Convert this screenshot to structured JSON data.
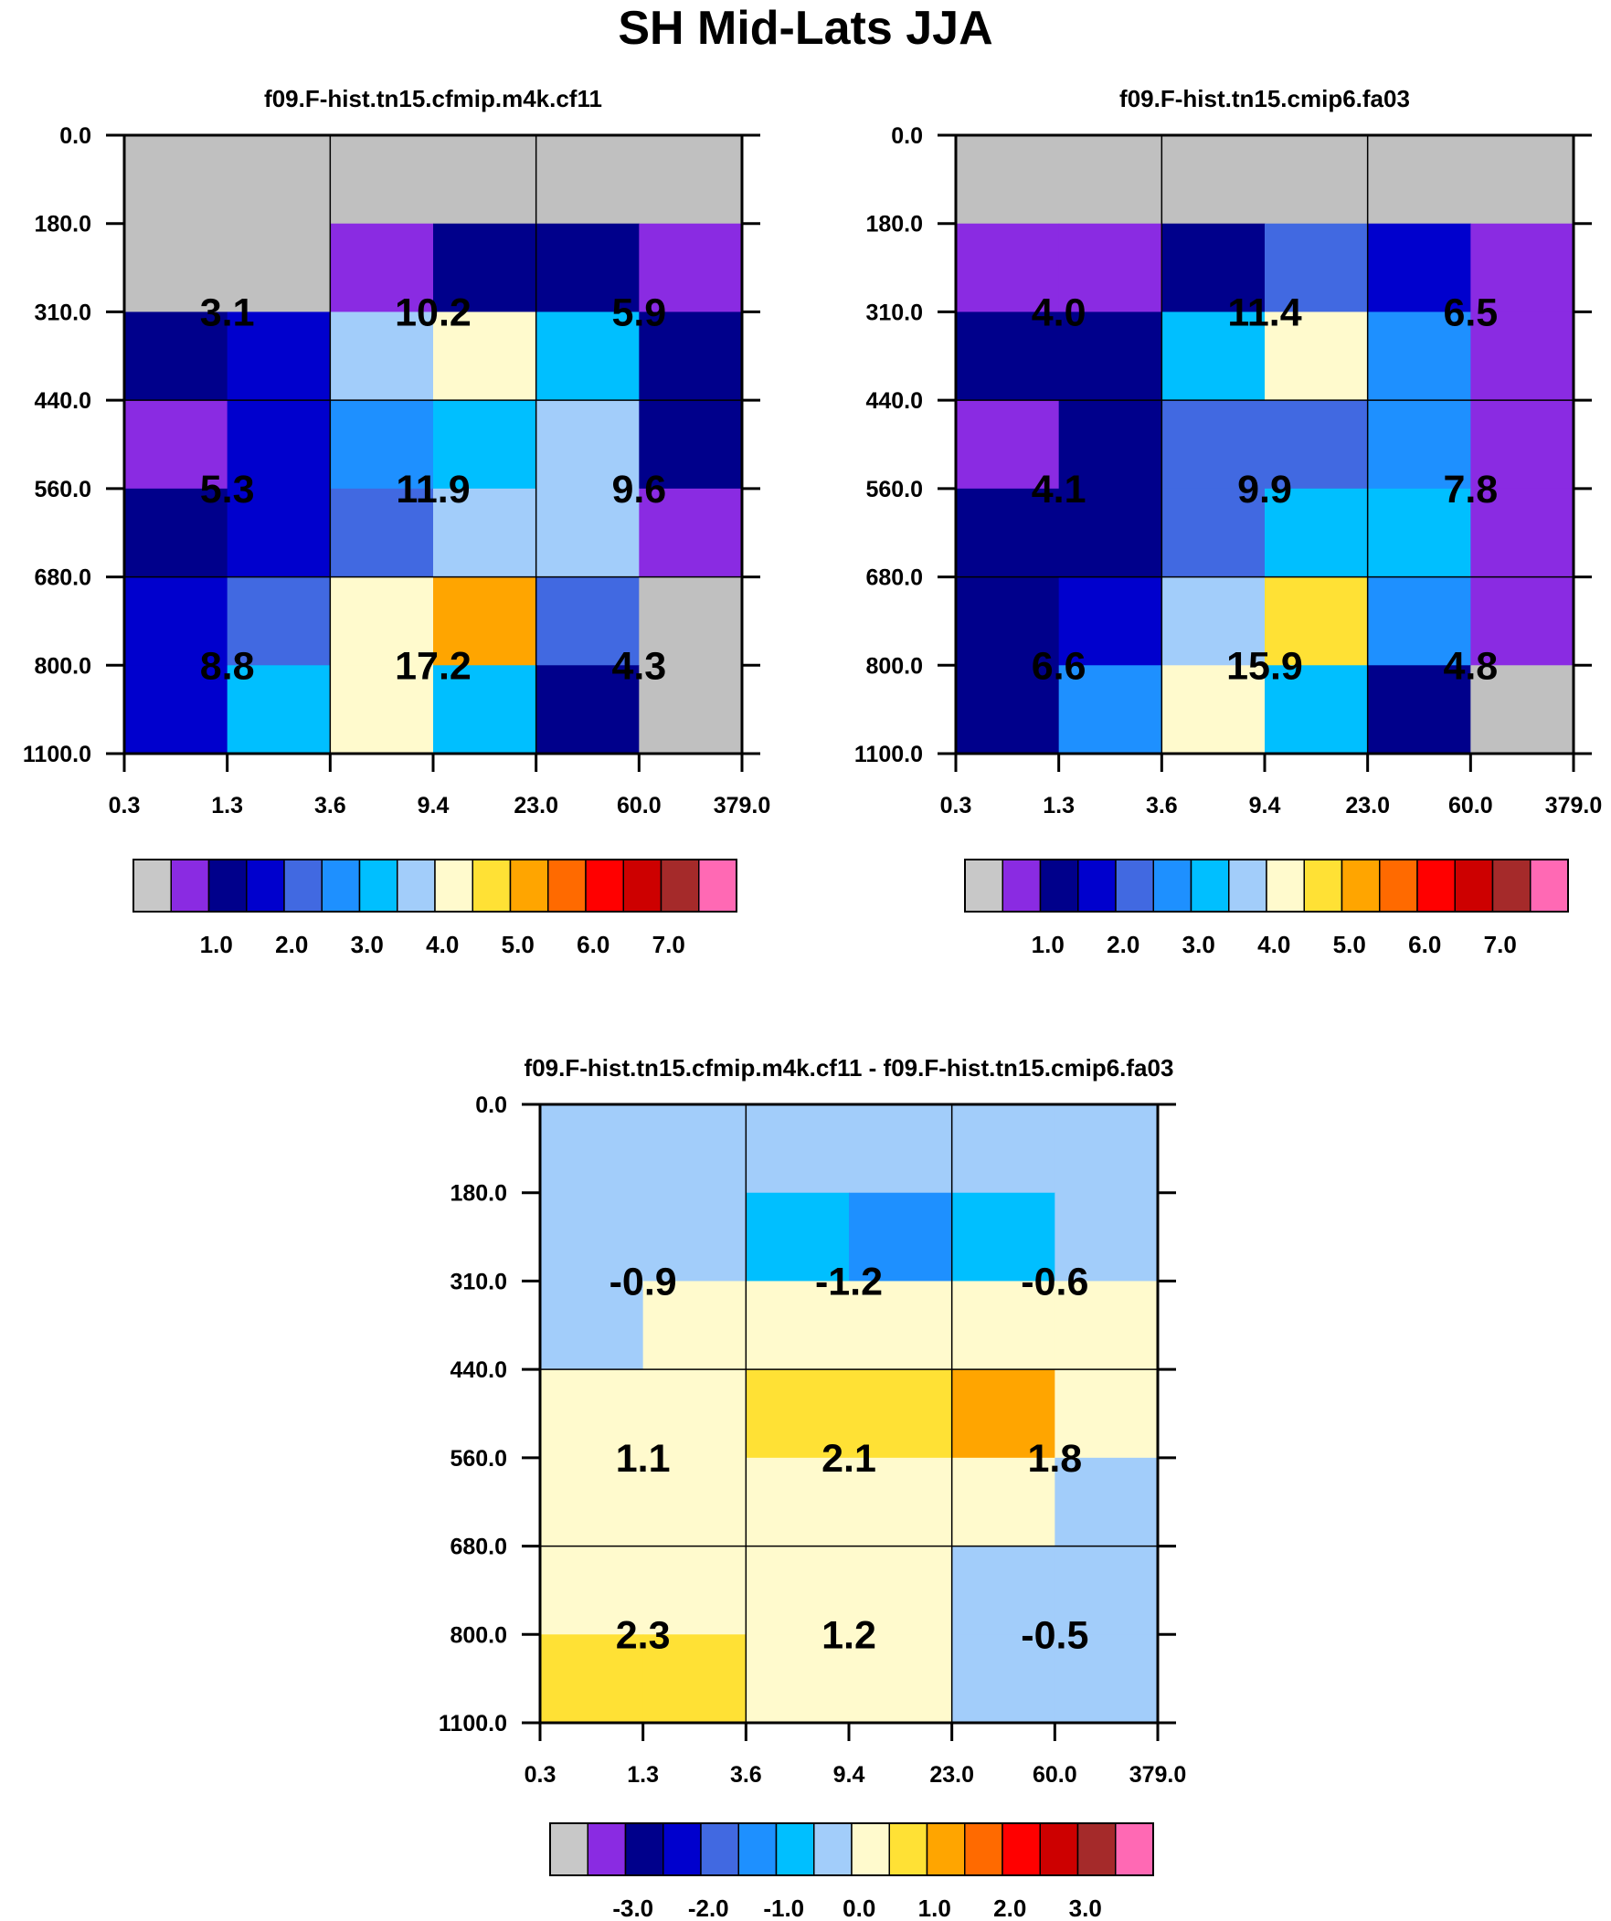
{
  "main_title": "SH Mid-Lats JJA",
  "chart_data": [
    {
      "type": "heatmap",
      "title": "f09.F-hist.tn15.cfmip.m4k.cf11",
      "x_ticks": [
        "0.3",
        "1.3",
        "3.6",
        "9.4",
        "23.0",
        "60.0",
        "379.0"
      ],
      "y_ticks": [
        "0.0",
        "180.0",
        "310.0",
        "440.0",
        "560.0",
        "680.0",
        "800.0",
        "1100.0"
      ],
      "grid": [
        [
          "#c0c0c0",
          "#c0c0c0",
          "#c0c0c0",
          "#c0c0c0",
          "#c0c0c0",
          "#c0c0c0"
        ],
        [
          "#c0c0c0",
          "#c0c0c0",
          "#8a2be2",
          "#00008b",
          "#00008b",
          "#8a2be2"
        ],
        [
          "#00008b",
          "#0000cd",
          "#a2cdfa",
          "#fffacd",
          "#00bfff",
          "#00008b"
        ],
        [
          "#8a2be2",
          "#0000cd",
          "#1e90ff",
          "#00bfff",
          "#a2cdfa",
          "#00008b"
        ],
        [
          "#00008b",
          "#0000cd",
          "#4169e1",
          "#a2cdfa",
          "#a2cdfa",
          "#8a2be2"
        ],
        [
          "#0000cd",
          "#4169e1",
          "#fffacd",
          "#ffa500",
          "#4169e1",
          "#c0c0c0"
        ],
        [
          "#0000cd",
          "#00bfff",
          "#fffacd",
          "#00bfff",
          "#00008b",
          "#c0c0c0"
        ]
      ],
      "totals": [
        [
          "3.1",
          "10.2",
          "5.9"
        ],
        [
          "5.3",
          "11.9",
          "9.6"
        ],
        [
          "8.8",
          "17.2",
          "4.3"
        ]
      ],
      "colorbar": {
        "colors": [
          "#c8c8c8",
          "#8a2be2",
          "#00008b",
          "#0000cd",
          "#4169e1",
          "#1e90ff",
          "#00bfff",
          "#a2cdfa",
          "#fffacd",
          "#ffe135",
          "#ffa500",
          "#ff6a00",
          "#ff0000",
          "#cd0000",
          "#a52a2a",
          "#ff69b4"
        ],
        "labels": [
          "1.0",
          "2.0",
          "3.0",
          "4.0",
          "5.0",
          "6.0",
          "7.0"
        ]
      }
    },
    {
      "type": "heatmap",
      "title": "f09.F-hist.tn15.cmip6.fa03",
      "x_ticks": [
        "0.3",
        "1.3",
        "3.6",
        "9.4",
        "23.0",
        "60.0",
        "379.0"
      ],
      "y_ticks": [
        "0.0",
        "180.0",
        "310.0",
        "440.0",
        "560.0",
        "680.0",
        "800.0",
        "1100.0"
      ],
      "grid": [
        [
          "#c0c0c0",
          "#c0c0c0",
          "#c0c0c0",
          "#c0c0c0",
          "#c0c0c0",
          "#c0c0c0"
        ],
        [
          "#8a2be2",
          "#8a2be2",
          "#00008b",
          "#4169e1",
          "#0000cd",
          "#8a2be2"
        ],
        [
          "#00008b",
          "#00008b",
          "#00bfff",
          "#fffacd",
          "#1e90ff",
          "#8a2be2"
        ],
        [
          "#8a2be2",
          "#00008b",
          "#4169e1",
          "#4169e1",
          "#1e90ff",
          "#8a2be2"
        ],
        [
          "#00008b",
          "#00008b",
          "#4169e1",
          "#00bfff",
          "#00bfff",
          "#8a2be2"
        ],
        [
          "#00008b",
          "#0000cd",
          "#a2cdfa",
          "#ffe135",
          "#1e90ff",
          "#8a2be2"
        ],
        [
          "#00008b",
          "#1e90ff",
          "#fffacd",
          "#00bfff",
          "#00008b",
          "#c0c0c0"
        ]
      ],
      "totals": [
        [
          "4.0",
          "11.4",
          "6.5"
        ],
        [
          "4.1",
          "9.9",
          "7.8"
        ],
        [
          "6.6",
          "15.9",
          "4.8"
        ]
      ],
      "colorbar": {
        "colors": [
          "#c8c8c8",
          "#8a2be2",
          "#00008b",
          "#0000cd",
          "#4169e1",
          "#1e90ff",
          "#00bfff",
          "#a2cdfa",
          "#fffacd",
          "#ffe135",
          "#ffa500",
          "#ff6a00",
          "#ff0000",
          "#cd0000",
          "#a52a2a",
          "#ff69b4"
        ],
        "labels": [
          "1.0",
          "2.0",
          "3.0",
          "4.0",
          "5.0",
          "6.0",
          "7.0"
        ]
      }
    },
    {
      "type": "heatmap",
      "title": "f09.F-hist.tn15.cfmip.m4k.cf11 - f09.F-hist.tn15.cmip6.fa03",
      "x_ticks": [
        "0.3",
        "1.3",
        "3.6",
        "9.4",
        "23.0",
        "60.0",
        "379.0"
      ],
      "y_ticks": [
        "0.0",
        "180.0",
        "310.0",
        "440.0",
        "560.0",
        "680.0",
        "800.0",
        "1100.0"
      ],
      "grid": [
        [
          "#a2cdfa",
          "#a2cdfa",
          "#a2cdfa",
          "#a2cdfa",
          "#a2cdfa",
          "#a2cdfa"
        ],
        [
          "#a2cdfa",
          "#a2cdfa",
          "#00bfff",
          "#1e90ff",
          "#00bfff",
          "#a2cdfa"
        ],
        [
          "#a2cdfa",
          "#fffacd",
          "#fffacd",
          "#fffacd",
          "#fffacd",
          "#fffacd"
        ],
        [
          "#fffacd",
          "#fffacd",
          "#ffe135",
          "#ffe135",
          "#ffa500",
          "#fffacd"
        ],
        [
          "#fffacd",
          "#fffacd",
          "#fffacd",
          "#fffacd",
          "#fffacd",
          "#a2cdfa"
        ],
        [
          "#fffacd",
          "#fffacd",
          "#fffacd",
          "#fffacd",
          "#a2cdfa",
          "#a2cdfa"
        ],
        [
          "#ffe135",
          "#ffe135",
          "#fffacd",
          "#fffacd",
          "#a2cdfa",
          "#a2cdfa"
        ]
      ],
      "totals": [
        [
          "-0.9",
          "-1.2",
          "-0.6"
        ],
        [
          "1.1",
          "2.1",
          "1.8"
        ],
        [
          "2.3",
          "1.2",
          "-0.5"
        ]
      ],
      "colorbar": {
        "colors": [
          "#c8c8c8",
          "#8a2be2",
          "#00008b",
          "#0000cd",
          "#4169e1",
          "#1e90ff",
          "#00bfff",
          "#a2cdfa",
          "#fffacd",
          "#ffe135",
          "#ffa500",
          "#ff6a00",
          "#ff0000",
          "#cd0000",
          "#a52a2a",
          "#ff69b4"
        ],
        "labels": [
          "-3.0",
          "-2.0",
          "-1.0",
          "0.0",
          "1.0",
          "2.0",
          "3.0"
        ]
      }
    }
  ]
}
